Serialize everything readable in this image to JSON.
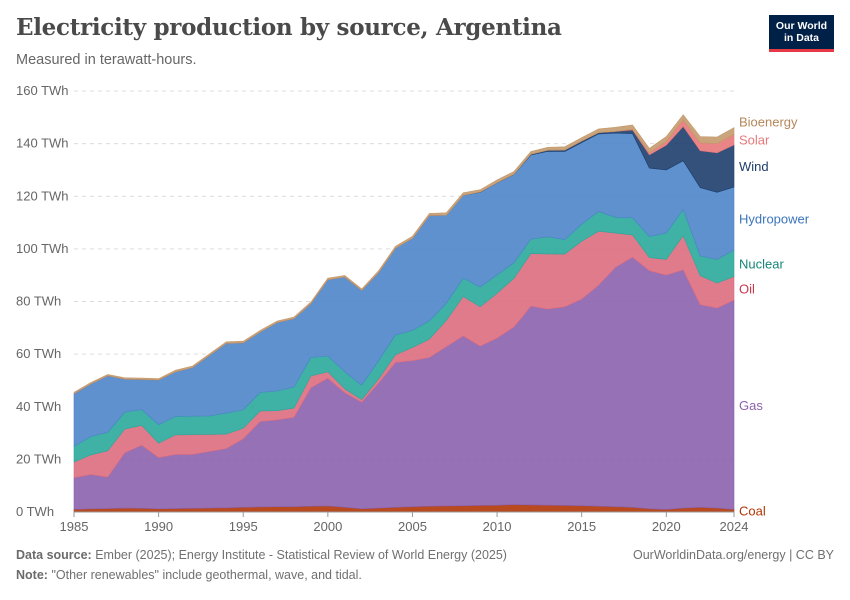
{
  "header": {
    "title": "Electricity production by source, Argentina",
    "subtitle": "Measured in terawatt-hours.",
    "logo_line1": "Our World",
    "logo_line2": "in Data"
  },
  "footer": {
    "source_label": "Data source:",
    "source_text": "Ember (2025); Energy Institute - Statistical Review of World Energy (2025)",
    "note_label": "Note:",
    "note_text": "\"Other renewables\" include geothermal, wave, and tidal.",
    "credit": "OurWorldinData.org/energy | CC BY"
  },
  "chart_data": {
    "type": "area",
    "stacked": true,
    "title": "Electricity production by source, Argentina",
    "ylabel": "TWh",
    "ylim": [
      0,
      160
    ],
    "y_ticks": [
      0,
      20,
      40,
      60,
      80,
      100,
      120,
      140,
      160
    ],
    "y_tick_labels": [
      "0 TWh",
      "20 TWh",
      "40 TWh",
      "60 TWh",
      "80 TWh",
      "100 TWh",
      "120 TWh",
      "140 TWh",
      "160 TWh"
    ],
    "x_ticks": [
      1985,
      1990,
      1995,
      2000,
      2005,
      2010,
      2015,
      2020,
      2024
    ],
    "x": [
      1985,
      1986,
      1987,
      1988,
      1989,
      1990,
      1991,
      1992,
      1993,
      1994,
      1995,
      1996,
      1997,
      1998,
      1999,
      2000,
      2001,
      2002,
      2003,
      2004,
      2005,
      2006,
      2007,
      2008,
      2009,
      2010,
      2011,
      2012,
      2013,
      2014,
      2015,
      2016,
      2017,
      2018,
      2019,
      2020,
      2021,
      2022,
      2023,
      2024
    ],
    "series": [
      {
        "name": "Coal",
        "color": "#b13507",
        "values": [
          1.0,
          1.2,
          1.3,
          1.5,
          1.4,
          1.2,
          1.3,
          1.4,
          1.5,
          1.6,
          1.8,
          1.9,
          2.0,
          2.0,
          2.2,
          2.3,
          1.8,
          1.2,
          1.5,
          1.8,
          2.0,
          2.2,
          2.3,
          2.4,
          2.5,
          2.6,
          2.8,
          2.7,
          2.6,
          2.5,
          2.4,
          2.2,
          2.0,
          1.8,
          1.2,
          1.0,
          1.5,
          1.8,
          1.5,
          1.0
        ]
      },
      {
        "name": "Gas",
        "color": "#8c62ad",
        "values": [
          12.0,
          13.0,
          12.0,
          21.0,
          24.0,
          19.5,
          20.5,
          20.5,
          21.5,
          22.5,
          26.0,
          32.5,
          33.0,
          34.0,
          45.0,
          48.5,
          43.5,
          40.5,
          47.5,
          55.0,
          55.5,
          56.5,
          60.5,
          64.5,
          60.5,
          63.5,
          67.5,
          75.5,
          74.5,
          75.5,
          78.5,
          84.0,
          91.0,
          95.0,
          90.5,
          89.0,
          90.5,
          77.0,
          76.0,
          79.5
        ]
      },
      {
        "name": "Oil",
        "color": "#dd6d7f",
        "values": [
          6.0,
          7.5,
          10.0,
          9.0,
          7.5,
          5.5,
          7.5,
          7.5,
          6.5,
          5.5,
          4.0,
          4.0,
          3.5,
          3.5,
          4.5,
          2.5,
          1.5,
          1.0,
          1.5,
          3.0,
          5.0,
          7.0,
          10.0,
          15.0,
          15.0,
          17.0,
          18.5,
          20.0,
          21.0,
          20.0,
          22.0,
          20.5,
          13.0,
          8.5,
          5.0,
          6.0,
          13.0,
          11.0,
          9.5,
          9.0
        ]
      },
      {
        "name": "Nuclear",
        "color": "#2ba89b",
        "values": [
          6.0,
          7.0,
          7.0,
          6.5,
          6.0,
          7.0,
          7.0,
          7.0,
          7.0,
          8.0,
          7.0,
          7.0,
          7.5,
          8.0,
          7.0,
          6.0,
          6.5,
          5.5,
          7.0,
          7.5,
          6.5,
          7.0,
          6.5,
          7.0,
          7.5,
          7.0,
          6.0,
          5.5,
          6.5,
          5.5,
          6.5,
          7.5,
          6.0,
          6.5,
          8.0,
          10.0,
          10.0,
          7.5,
          9.0,
          10.0
        ]
      },
      {
        "name": "Hydropower",
        "color": "#4c85c8",
        "values": [
          20.0,
          20.0,
          21.5,
          12.5,
          11.5,
          17.0,
          17.0,
          18.5,
          23.0,
          26.5,
          25.5,
          23.0,
          26.0,
          26.0,
          20.5,
          29.0,
          36.0,
          36.0,
          33.5,
          33.0,
          35.0,
          40.0,
          33.5,
          31.5,
          36.0,
          35.0,
          33.5,
          32.0,
          32.5,
          33.5,
          31.0,
          29.5,
          32.0,
          32.0,
          26.0,
          24.0,
          18.5,
          26.0,
          25.5,
          24.0
        ]
      },
      {
        "name": "Wind",
        "color": "#1d3e6c",
        "values": [
          0,
          0,
          0,
          0,
          0,
          0,
          0,
          0,
          0,
          0,
          0,
          0,
          0,
          0,
          0,
          0,
          0,
          0,
          0,
          0,
          0,
          0,
          0,
          0,
          0.1,
          0.1,
          0.1,
          0.3,
          0.4,
          0.6,
          0.6,
          0.5,
          0.6,
          1.4,
          5.0,
          9.4,
          13.0,
          14.0,
          15.0,
          16.0
        ]
      },
      {
        "name": "Solar",
        "color": "#e8787a",
        "values": [
          0,
          0,
          0,
          0,
          0,
          0,
          0,
          0,
          0,
          0,
          0,
          0,
          0,
          0,
          0,
          0,
          0,
          0,
          0,
          0,
          0,
          0,
          0,
          0,
          0,
          0,
          0,
          0,
          0,
          0,
          0,
          0,
          0.1,
          0.3,
          0.8,
          1.5,
          2.5,
          3.0,
          3.5,
          4.0
        ]
      },
      {
        "name": "Bioenergy",
        "color": "#c49a6c",
        "values": [
          0.5,
          0.5,
          0.5,
          0.5,
          0.5,
          0.5,
          0.6,
          0.6,
          0.6,
          0.6,
          0.6,
          0.6,
          0.6,
          0.6,
          0.6,
          0.6,
          0.6,
          0.6,
          0.7,
          0.7,
          0.8,
          0.8,
          0.9,
          0.9,
          0.9,
          1.0,
          1.0,
          1.0,
          1.1,
          1.2,
          1.3,
          1.4,
          1.5,
          1.6,
          1.7,
          1.8,
          2.0,
          2.4,
          2.5,
          2.6
        ]
      }
    ],
    "legend": "right-edge labels"
  }
}
